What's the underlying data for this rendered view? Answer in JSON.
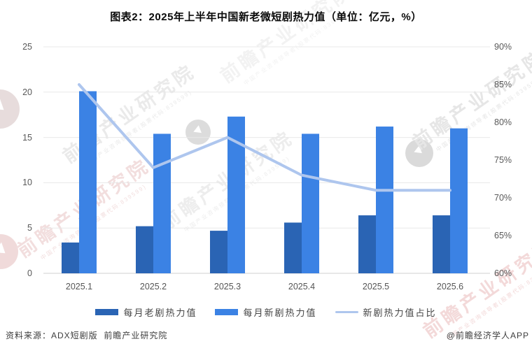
{
  "title": "图表2：2025年上半年中国新老微短剧热力值（单位：亿元，%）",
  "chart_data": {
    "type": "bar",
    "combo": "grouped bars + line on secondary axis",
    "categories": [
      "2025.1",
      "2025.2",
      "2025.3",
      "2025.4",
      "2025.5",
      "2025.6"
    ],
    "series": [
      {
        "name": "每月老剧热力值",
        "type": "bar",
        "axis": "left",
        "color": "#2a64b4",
        "values": [
          3.4,
          5.2,
          4.7,
          5.6,
          6.4,
          6.4
        ]
      },
      {
        "name": "每月新剧热力值",
        "type": "bar",
        "axis": "left",
        "color": "#3b82e4",
        "values": [
          20.1,
          15.4,
          17.3,
          15.4,
          16.2,
          16.0
        ]
      },
      {
        "name": "新剧热力值占比",
        "type": "line",
        "axis": "right",
        "color": "#aec6ee",
        "unit": "%",
        "values": [
          85,
          74,
          78,
          73,
          71,
          71
        ]
      }
    ],
    "left_axis": {
      "min": 0,
      "max": 25,
      "step": 5,
      "ticks": [
        "0",
        "5",
        "10",
        "15",
        "20",
        "25"
      ],
      "unit": "亿元"
    },
    "right_axis": {
      "min": 60,
      "max": 90,
      "step": 5,
      "ticks": [
        "60%",
        "65%",
        "70%",
        "75%",
        "80%",
        "85%",
        "90%"
      ],
      "unit": "%"
    },
    "grid": "horizontal gridlines only",
    "legend_position": "bottom"
  },
  "legend": {
    "items": [
      "每月老剧热力值",
      "每月新剧热力值",
      "新剧热力值占比"
    ]
  },
  "footer": {
    "source": "资料来源：ADX短剧版  前瞻产业研究院",
    "credit": "@前瞻经济学人APP"
  },
  "watermark": {
    "main": "前瞻产业研究院",
    "sub": "中国产业咨询领导者(股票代码:839599)"
  }
}
